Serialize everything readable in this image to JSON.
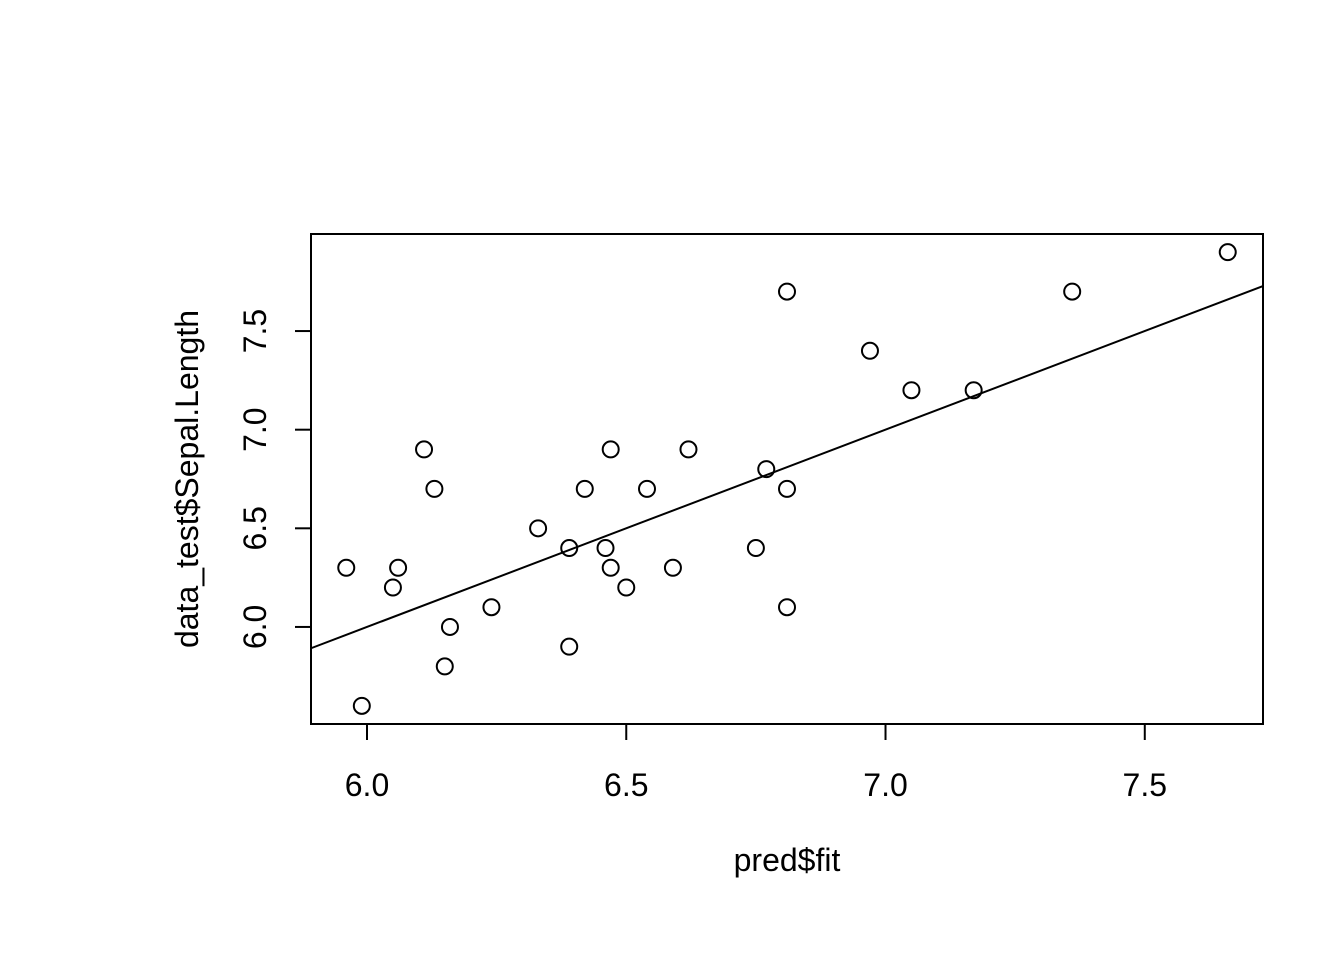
{
  "figure": {
    "background": "#ffffff",
    "foreground": "#000000"
  },
  "chart_data": {
    "type": "scatter",
    "title": "",
    "xlabel": "pred$fit",
    "ylabel": "data_test$Sepal.Length",
    "xlim": [
      5.892,
      7.728
    ],
    "ylim": [
      5.508,
      7.992
    ],
    "x_ticks": [
      6.0,
      6.5,
      7.0,
      7.5
    ],
    "x_tick_labels": [
      "6.0",
      "6.5",
      "7.0",
      "7.5"
    ],
    "y_ticks": [
      6.0,
      6.5,
      7.0,
      7.5
    ],
    "y_tick_labels": [
      "6.0",
      "6.5",
      "7.0",
      "7.5"
    ],
    "grid": false,
    "legend": false,
    "marker": "open-circle",
    "points": [
      [
        5.96,
        6.3
      ],
      [
        5.99,
        5.6
      ],
      [
        6.05,
        6.2
      ],
      [
        6.06,
        6.3
      ],
      [
        6.11,
        6.9
      ],
      [
        6.13,
        6.7
      ],
      [
        6.15,
        5.8
      ],
      [
        6.16,
        6.0
      ],
      [
        6.24,
        6.1
      ],
      [
        6.33,
        6.5
      ],
      [
        6.39,
        6.4
      ],
      [
        6.39,
        5.9
      ],
      [
        6.42,
        6.7
      ],
      [
        6.46,
        6.4
      ],
      [
        6.47,
        6.9
      ],
      [
        6.47,
        6.3
      ],
      [
        6.5,
        6.2
      ],
      [
        6.54,
        6.7
      ],
      [
        6.59,
        6.3
      ],
      [
        6.62,
        6.9
      ],
      [
        6.75,
        6.4
      ],
      [
        6.77,
        6.8
      ],
      [
        6.81,
        6.7
      ],
      [
        6.81,
        7.7
      ],
      [
        6.81,
        6.1
      ],
      [
        6.97,
        7.4
      ],
      [
        7.05,
        7.2
      ],
      [
        7.17,
        7.2
      ],
      [
        7.36,
        7.7
      ],
      [
        7.66,
        7.9
      ]
    ],
    "reference_line": {
      "slope": 1,
      "intercept": 0
    }
  }
}
